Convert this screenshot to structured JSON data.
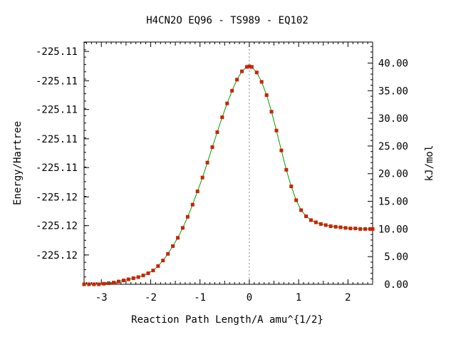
{
  "chart_data": {
    "type": "line",
    "title": "H4CN2O    EQ96 - TS989 - EQ102",
    "xlabel": "Reaction Path Length/A amu^{1/2}",
    "ylabel_left": "Energy/Hartree",
    "ylabel_right": "kJ/mol",
    "xlim": [
      -3.35,
      2.5
    ],
    "ylim_right": [
      0,
      43.8
    ],
    "x_ticks": [
      -3,
      -2,
      -1,
      0,
      1,
      2
    ],
    "x_tick_labels": [
      "-3",
      "-2",
      "-1",
      "0",
      "1",
      "2"
    ],
    "left_ticks_kjmol": [
      5.3,
      10.6,
      15.8,
      21.1,
      26.3,
      31.6,
      36.8,
      42.1
    ],
    "left_tick_labels": [
      "-225.12",
      "-225.12",
      "-225.12",
      "-225.11",
      "-225.11",
      "-225.11",
      "-225.11",
      "-225.11"
    ],
    "right_ticks": [
      0,
      5,
      10,
      15,
      20,
      25,
      30,
      35,
      40
    ],
    "right_tick_labels": [
      "0.00",
      "5.00",
      "10.00",
      "15.00",
      "20.00",
      "25.00",
      "30.00",
      "35.00",
      "40.00"
    ],
    "ts_marker_x": 0.0,
    "colors": {
      "line": "#00a000",
      "marker": "#cc2200",
      "ts_line": "#888888",
      "axis": "#000000"
    },
    "series": [
      {
        "x": [
          -3.35,
          -3.25,
          -3.15,
          -3.05,
          -2.95,
          -2.85,
          -2.75,
          -2.65,
          -2.55,
          -2.45,
          -2.35,
          -2.25,
          -2.15,
          -2.05,
          -1.95,
          -1.85,
          -1.75,
          -1.65,
          -1.55,
          -1.45,
          -1.35,
          -1.25,
          -1.15,
          -1.05,
          -0.95,
          -0.85,
          -0.75,
          -0.65,
          -0.55,
          -0.45,
          -0.35,
          -0.25,
          -0.15,
          -0.05,
          0.0,
          0.05,
          0.15,
          0.25,
          0.35,
          0.45,
          0.55,
          0.65,
          0.75,
          0.85,
          0.95,
          1.05,
          1.15,
          1.25,
          1.35,
          1.45,
          1.55,
          1.65,
          1.75,
          1.85,
          1.95,
          2.05,
          2.15,
          2.25,
          2.35,
          2.45,
          2.5
        ],
        "y": [
          0.0,
          0.0,
          0.0,
          0.0,
          0.1,
          0.2,
          0.3,
          0.5,
          0.7,
          0.9,
          1.1,
          1.3,
          1.6,
          2.0,
          2.5,
          3.3,
          4.3,
          5.5,
          6.9,
          8.4,
          10.2,
          12.2,
          14.4,
          16.8,
          19.3,
          22.0,
          24.8,
          27.5,
          30.2,
          32.7,
          35.0,
          37.0,
          38.5,
          39.3,
          39.4,
          39.3,
          38.3,
          36.6,
          34.2,
          31.2,
          27.8,
          24.2,
          20.7,
          17.7,
          15.2,
          13.4,
          12.3,
          11.6,
          11.2,
          10.9,
          10.7,
          10.5,
          10.4,
          10.3,
          10.2,
          10.1,
          10.1,
          10.0,
          10.0,
          10.0,
          10.0
        ]
      }
    ]
  }
}
